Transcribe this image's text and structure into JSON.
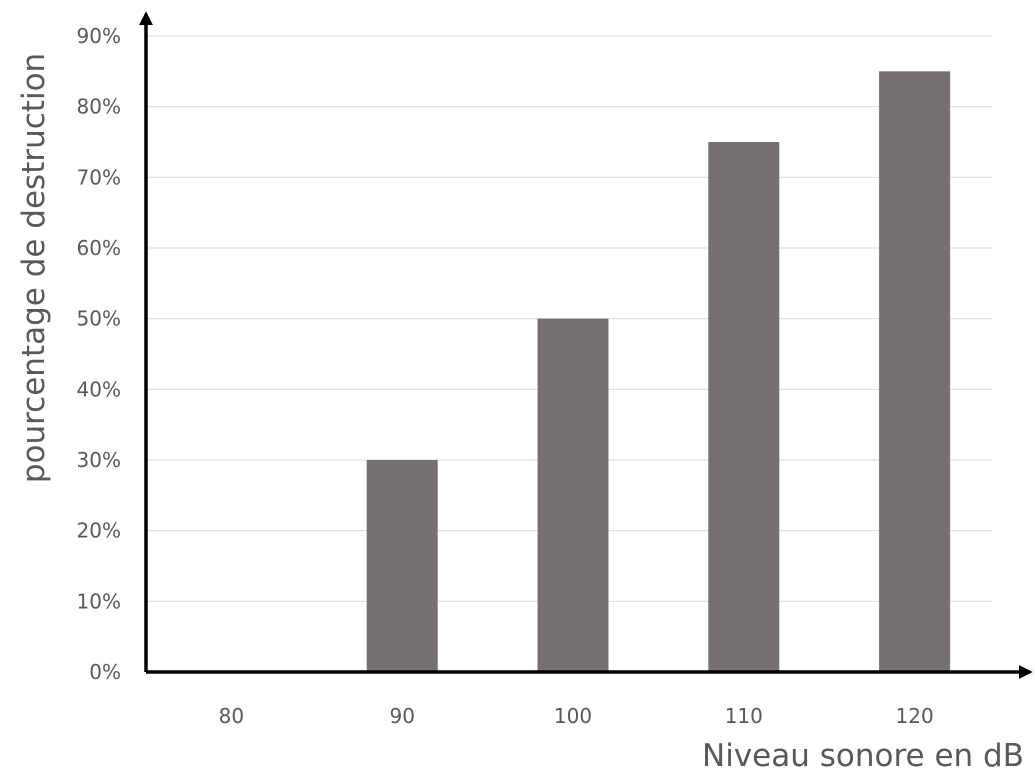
{
  "chart_data": {
    "type": "bar",
    "categories": [
      "80",
      "90",
      "100",
      "110",
      "120"
    ],
    "values": [
      0,
      30,
      50,
      75,
      85
    ],
    "ytick_labels": [
      "0%",
      "10%",
      "20%",
      "30%",
      "40%",
      "50%",
      "60%",
      "70%",
      "80%",
      "90%"
    ],
    "xlabel": "Niveau sonore en dB",
    "ylabel": "pourcentage de destruction",
    "ylim": [
      0,
      90
    ],
    "grid": true,
    "bar_color": "#767171",
    "axis_color": "#000000",
    "grid_color": "#d9d9d9",
    "text_color": "#595959"
  }
}
